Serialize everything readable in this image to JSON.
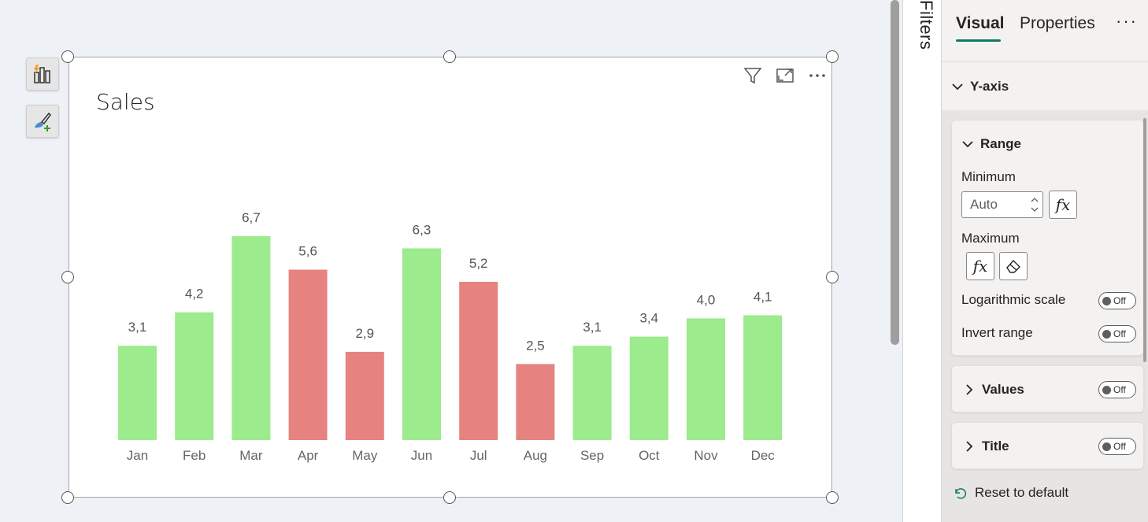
{
  "canvas": {
    "format_button_icon": "build-visual-icon",
    "format_paint_icon": "format-paint-icon"
  },
  "visual": {
    "title": "Sales",
    "header_icons": [
      "filter-icon",
      "focus-mode-icon",
      "more-options-icon"
    ]
  },
  "chart_data": {
    "type": "bar",
    "categories": [
      "Jan",
      "Feb",
      "Mar",
      "Apr",
      "May",
      "Jun",
      "Jul",
      "Aug",
      "Sep",
      "Oct",
      "Nov",
      "Dec"
    ],
    "values": [
      3.1,
      4.2,
      6.7,
      5.6,
      2.9,
      6.3,
      5.2,
      2.5,
      3.1,
      3.4,
      4.0,
      4.1
    ],
    "labels": [
      "3,1",
      "4,2",
      "6,7",
      "5,6",
      "2,9",
      "6,3",
      "5,2",
      "2,5",
      "3,1",
      "3,4",
      "4,0",
      "4,1"
    ],
    "bar_colors": [
      "#9ceb8c",
      "#9ceb8c",
      "#9ceb8c",
      "#e68380",
      "#e68380",
      "#9ceb8c",
      "#e68380",
      "#e68380",
      "#9ceb8c",
      "#9ceb8c",
      "#9ceb8c",
      "#9ceb8c"
    ],
    "title": "Sales",
    "xlabel": "",
    "ylabel": "",
    "ylim": [
      0,
      7.1
    ],
    "grid": false,
    "axis_visible": false
  },
  "filters": {
    "label": "Filters"
  },
  "pane": {
    "tabs": {
      "visual": "Visual",
      "properties": "Properties"
    },
    "more": "···",
    "y_axis": "Y-axis",
    "range": {
      "header": "Range",
      "minimum_label": "Minimum",
      "minimum_value": "Auto",
      "maximum_label": "Maximum",
      "fx": "fx",
      "log_scale_label": "Logarithmic scale",
      "log_scale_state": "Off",
      "invert_label": "Invert range",
      "invert_state": "Off"
    },
    "values": {
      "header": "Values",
      "state": "Off"
    },
    "title_section": {
      "header": "Title",
      "state": "Off"
    },
    "reset": "Reset to default"
  },
  "colors": {
    "accent": "#117865",
    "positive_bar": "#9ceb8c",
    "negative_bar": "#e68380"
  }
}
